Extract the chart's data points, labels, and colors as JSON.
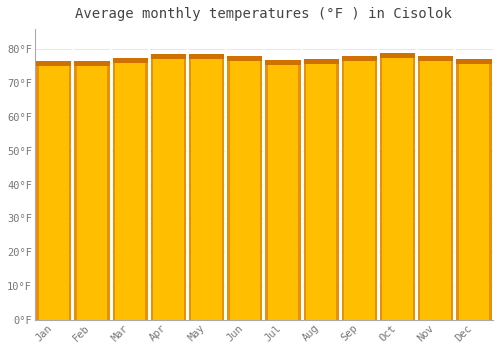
{
  "title": "Average monthly temperatures (°F ) in Cisolok",
  "months": [
    "Jan",
    "Feb",
    "Mar",
    "Apr",
    "May",
    "Jun",
    "Jul",
    "Aug",
    "Sep",
    "Oct",
    "Nov",
    "Dec"
  ],
  "values": [
    76.5,
    76.5,
    77.5,
    78.5,
    78.5,
    78.0,
    76.8,
    77.2,
    78.0,
    79.0,
    78.0,
    77.2
  ],
  "bar_color": "#FFA500",
  "bar_edge_color": "#E08000",
  "background_color": "#FFFFFF",
  "plot_bg_color": "#FFFFFF",
  "grid_color": "#DDDDDD",
  "text_color": "#777777",
  "ylim": [
    0,
    86
  ],
  "yticks": [
    0,
    10,
    20,
    30,
    40,
    50,
    60,
    70,
    80
  ],
  "title_fontsize": 10,
  "tick_fontsize": 7.5,
  "bar_width": 0.92
}
